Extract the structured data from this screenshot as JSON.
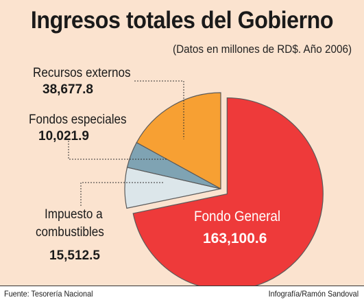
{
  "title": "Ingresos totales del Gobierno",
  "subtitle": "(Datos en millones de RD$. Año 2006)",
  "footer": {
    "source": "Fuente: Tesorería Nacional",
    "credit": "Infografía/Ramón Sandoval"
  },
  "colors": {
    "background": "#fbe3cf",
    "fondo_general": "#ee3a3a",
    "recursos_externos": "#f7a033",
    "fondos_especiales": "#7fa3b3",
    "impuesto_combustibles": "#dce6ea",
    "center_text": "#ffffff"
  },
  "chart_data": {
    "type": "pie",
    "title": "Ingresos totales del Gobierno",
    "subtitle": "(Datos en millones de RD$. Año 2006)",
    "slices": [
      {
        "label": "Fondo General",
        "value_text": "163,100.6",
        "value": 163100.6,
        "exploded": true
      },
      {
        "label": "Impuesto a combustibles",
        "label_line1": "Impuesto a",
        "label_line2": "combustibles",
        "value_text": "15,512.5",
        "value": 15512.5
      },
      {
        "label": "Fondos especiales",
        "value_text": "10,021.9",
        "value": 10021.9
      },
      {
        "label": "Recursos externos",
        "value_text": "38,677.8",
        "value": 38677.8
      }
    ]
  }
}
